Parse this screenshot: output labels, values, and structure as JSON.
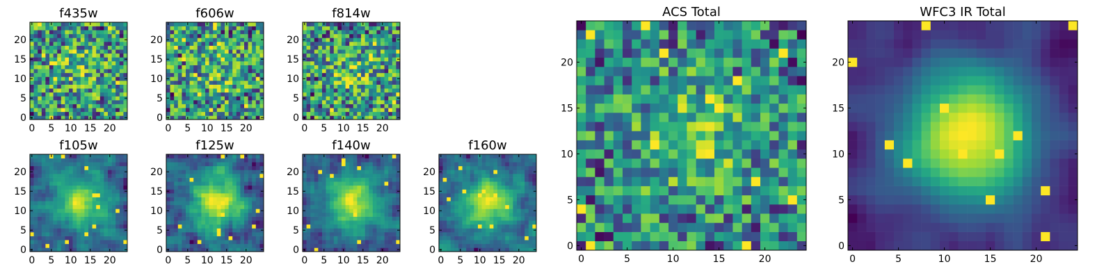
{
  "chart_data": [
    {
      "type": "heatmap",
      "title": "f435w",
      "seed": 11,
      "xticks": [
        0,
        5,
        10,
        15,
        20
      ],
      "yticks": [
        0,
        5,
        10,
        15,
        20
      ],
      "grid_size": 25,
      "colormap": "viridis",
      "pattern": "noisy"
    },
    {
      "type": "heatmap",
      "title": "f606w",
      "seed": 23,
      "xticks": [
        0,
        5,
        10,
        15,
        20
      ],
      "yticks": [
        0,
        5,
        10,
        15,
        20
      ],
      "grid_size": 25,
      "colormap": "viridis",
      "pattern": "noisy"
    },
    {
      "type": "heatmap",
      "title": "f814w",
      "seed": 37,
      "xticks": [
        0,
        5,
        10,
        15,
        20
      ],
      "yticks": [
        0,
        5,
        10,
        15,
        20
      ],
      "grid_size": 25,
      "colormap": "viridis",
      "pattern": "noisy"
    },
    {
      "type": "heatmap",
      "title": "f105w",
      "seed": 41,
      "xticks": [
        0,
        5,
        10,
        15,
        20
      ],
      "yticks": [
        0,
        5,
        10,
        15,
        20
      ],
      "grid_size": 25,
      "colormap": "viridis",
      "pattern": "blob"
    },
    {
      "type": "heatmap",
      "title": "f125w",
      "seed": 53,
      "xticks": [
        0,
        5,
        10,
        15,
        20
      ],
      "yticks": [
        0,
        5,
        10,
        15,
        20
      ],
      "grid_size": 25,
      "colormap": "viridis",
      "pattern": "blob"
    },
    {
      "type": "heatmap",
      "title": "f140w",
      "seed": 67,
      "xticks": [
        0,
        5,
        10,
        15,
        20
      ],
      "yticks": [
        0,
        5,
        10,
        15,
        20
      ],
      "grid_size": 25,
      "colormap": "viridis",
      "pattern": "blob"
    },
    {
      "type": "heatmap",
      "title": "f160w",
      "seed": 79,
      "xticks": [
        0,
        5,
        10,
        15,
        20
      ],
      "yticks": [
        0,
        5,
        10,
        15,
        20
      ],
      "grid_size": 25,
      "colormap": "viridis",
      "pattern": "blob"
    },
    {
      "type": "heatmap",
      "title": "ACS Total",
      "seed": 83,
      "xticks": [
        0,
        5,
        10,
        15,
        20
      ],
      "yticks": [
        0,
        5,
        10,
        15,
        20
      ],
      "grid_size": 25,
      "colormap": "viridis",
      "pattern": "medium"
    },
    {
      "type": "heatmap",
      "title": "WFC3 IR Total",
      "seed": 97,
      "xticks": [
        0,
        5,
        10,
        15,
        20
      ],
      "yticks": [
        0,
        5,
        10,
        15,
        20
      ],
      "grid_size": 25,
      "colormap": "viridis",
      "pattern": "smooth"
    }
  ],
  "colors": {
    "viridis_dark": "#440154",
    "viridis_mid": "#21918c",
    "viridis_bright": "#fde725",
    "frame": "#000000",
    "background": "#ffffff"
  }
}
